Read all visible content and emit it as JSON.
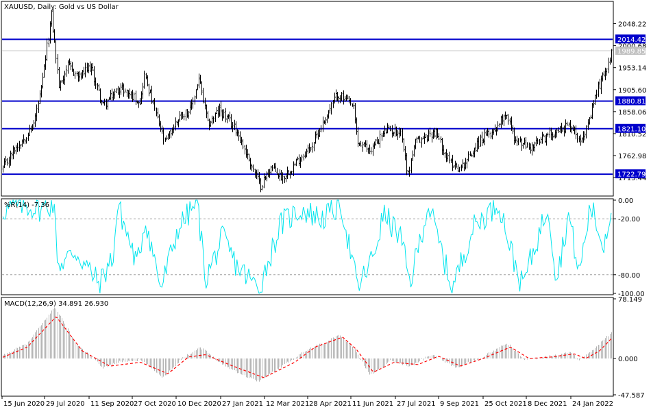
{
  "title": "XAUUSD, Daily:  Gold vs US Dollar",
  "colors": {
    "background": "#ffffff",
    "foreground": "#000000",
    "candle": "#000000",
    "level_line": "#0000cc",
    "level_tag_bg": "#0000cc",
    "level_tag_text": "#ffffff",
    "price_tag_bg": "#c0c0c0",
    "williams_line": "#00e5ee",
    "macd_hist": "#b4b4b4",
    "macd_signal": "#ff0000",
    "dotted_level": "#a0a0a0"
  },
  "x_axis_dates": [
    "15 Jun 2020",
    "29 Jul 2020",
    "11 Sep 2020",
    "27 Oct 2020",
    "10 Dec 2020",
    "27 Jan 2021",
    "12 Mar 2021",
    "28 Apr 2021",
    "11 Jun 2021",
    "27 Jul 2021",
    "9 Sep 2021",
    "25 Oct 2021",
    "8 Dec 2021",
    "24 Jan 2022"
  ],
  "chart_data": [
    {
      "type": "candlestick",
      "title": "XAUUSD, Daily:  Gold vs US Dollar",
      "ylim": [
        1677,
        2095
      ],
      "y_ticks": [
        "2048.22",
        "2000.68",
        "1953.14",
        "1905.60",
        "1858.06",
        "1810.52",
        "1762.98",
        "1715.44"
      ],
      "levels": [
        {
          "value": 2014.42,
          "label": "2014.42"
        },
        {
          "value": 1880.81,
          "label": "1880.81"
        },
        {
          "value": 1821.1,
          "label": "1821.10"
        },
        {
          "value": 1722.79,
          "label": "1722.79"
        }
      ],
      "current_price": {
        "value": 1989.85,
        "label": "1989.85"
      },
      "path": [
        {
          "x": 0,
          "y": 1725
        },
        {
          "x": 20,
          "y": 1775
        },
        {
          "x": 48,
          "y": 1825
        },
        {
          "x": 60,
          "y": 1905
        },
        {
          "x": 75,
          "y": 2068
        },
        {
          "x": 86,
          "y": 1910
        },
        {
          "x": 98,
          "y": 1958
        },
        {
          "x": 115,
          "y": 1932
        },
        {
          "x": 132,
          "y": 1955
        },
        {
          "x": 150,
          "y": 1870
        },
        {
          "x": 175,
          "y": 1910
        },
        {
          "x": 205,
          "y": 1880
        },
        {
          "x": 210,
          "y": 1940
        },
        {
          "x": 240,
          "y": 1790
        },
        {
          "x": 262,
          "y": 1850
        },
        {
          "x": 278,
          "y": 1862
        },
        {
          "x": 290,
          "y": 1930
        },
        {
          "x": 303,
          "y": 1830
        },
        {
          "x": 320,
          "y": 1862
        },
        {
          "x": 345,
          "y": 1818
        },
        {
          "x": 362,
          "y": 1758
        },
        {
          "x": 380,
          "y": 1698
        },
        {
          "x": 395,
          "y": 1738
        },
        {
          "x": 412,
          "y": 1715
        },
        {
          "x": 430,
          "y": 1745
        },
        {
          "x": 455,
          "y": 1785
        },
        {
          "x": 468,
          "y": 1825
        },
        {
          "x": 492,
          "y": 1896
        },
        {
          "x": 515,
          "y": 1870
        },
        {
          "x": 522,
          "y": 1790
        },
        {
          "x": 540,
          "y": 1775
        },
        {
          "x": 563,
          "y": 1818
        },
        {
          "x": 585,
          "y": 1815
        },
        {
          "x": 595,
          "y": 1720
        },
        {
          "x": 605,
          "y": 1790
        },
        {
          "x": 635,
          "y": 1815
        },
        {
          "x": 655,
          "y": 1750
        },
        {
          "x": 672,
          "y": 1735
        },
        {
          "x": 700,
          "y": 1795
        },
        {
          "x": 722,
          "y": 1820
        },
        {
          "x": 738,
          "y": 1858
        },
        {
          "x": 752,
          "y": 1795
        },
        {
          "x": 775,
          "y": 1780
        },
        {
          "x": 800,
          "y": 1808
        },
        {
          "x": 832,
          "y": 1830
        },
        {
          "x": 845,
          "y": 1800
        },
        {
          "x": 858,
          "y": 1825
        },
        {
          "x": 870,
          "y": 1900
        },
        {
          "x": 885,
          "y": 1955
        },
        {
          "x": 893,
          "y": 1990
        }
      ]
    },
    {
      "type": "line",
      "title": "%R(14) -7.36",
      "ylim": [
        -100,
        0
      ],
      "y_ticks": [
        "0.00",
        "-20.00",
        "-80.00",
        "-100.00"
      ],
      "levels": [
        -20,
        -80
      ],
      "path": [
        {
          "x": 0,
          "y": -12
        },
        {
          "x": 30,
          "y": -5
        },
        {
          "x": 60,
          "y": -10
        },
        {
          "x": 78,
          "y": -3
        },
        {
          "x": 85,
          "y": -70
        },
        {
          "x": 110,
          "y": -55
        },
        {
          "x": 145,
          "y": -90
        },
        {
          "x": 165,
          "y": -60
        },
        {
          "x": 172,
          "y": -5
        },
        {
          "x": 200,
          "y": -70
        },
        {
          "x": 212,
          "y": -20
        },
        {
          "x": 235,
          "y": -95
        },
        {
          "x": 260,
          "y": -30
        },
        {
          "x": 288,
          "y": -2
        },
        {
          "x": 300,
          "y": -85
        },
        {
          "x": 325,
          "y": -40
        },
        {
          "x": 345,
          "y": -70
        },
        {
          "x": 378,
          "y": -95
        },
        {
          "x": 410,
          "y": -25
        },
        {
          "x": 440,
          "y": -10
        },
        {
          "x": 470,
          "y": -20
        },
        {
          "x": 498,
          "y": -5
        },
        {
          "x": 522,
          "y": -95
        },
        {
          "x": 545,
          "y": -60
        },
        {
          "x": 560,
          "y": -15
        },
        {
          "x": 585,
          "y": -40
        },
        {
          "x": 598,
          "y": -90
        },
        {
          "x": 625,
          "y": -5
        },
        {
          "x": 660,
          "y": -95
        },
        {
          "x": 690,
          "y": -30
        },
        {
          "x": 728,
          "y": -2
        },
        {
          "x": 748,
          "y": -60
        },
        {
          "x": 762,
          "y": -92
        },
        {
          "x": 785,
          "y": -40
        },
        {
          "x": 800,
          "y": -5
        },
        {
          "x": 812,
          "y": -85
        },
        {
          "x": 830,
          "y": -15
        },
        {
          "x": 845,
          "y": -80
        },
        {
          "x": 862,
          "y": -5
        },
        {
          "x": 880,
          "y": -50
        },
        {
          "x": 893,
          "y": -7
        }
      ]
    },
    {
      "type": "bar+line",
      "title": "MACD(12,26,9) 34.891 26.930",
      "ylim": [
        -47.587,
        78.149
      ],
      "y_ticks": [
        "78.149",
        "0.000",
        "-47.587"
      ],
      "histogram_path": [
        {
          "x": 0,
          "y": 2
        },
        {
          "x": 40,
          "y": 20
        },
        {
          "x": 80,
          "y": 68
        },
        {
          "x": 110,
          "y": 20
        },
        {
          "x": 150,
          "y": -12
        },
        {
          "x": 175,
          "y": -4
        },
        {
          "x": 205,
          "y": -2
        },
        {
          "x": 238,
          "y": -25
        },
        {
          "x": 265,
          "y": 0
        },
        {
          "x": 292,
          "y": 15
        },
        {
          "x": 325,
          "y": -8
        },
        {
          "x": 355,
          "y": -22
        },
        {
          "x": 378,
          "y": -30
        },
        {
          "x": 420,
          "y": -5
        },
        {
          "x": 445,
          "y": 10
        },
        {
          "x": 495,
          "y": 30
        },
        {
          "x": 515,
          "y": 15
        },
        {
          "x": 540,
          "y": -22
        },
        {
          "x": 570,
          "y": -3
        },
        {
          "x": 598,
          "y": -10
        },
        {
          "x": 630,
          "y": 5
        },
        {
          "x": 665,
          "y": -12
        },
        {
          "x": 700,
          "y": 0
        },
        {
          "x": 740,
          "y": 20
        },
        {
          "x": 765,
          "y": -2
        },
        {
          "x": 800,
          "y": 3
        },
        {
          "x": 832,
          "y": 8
        },
        {
          "x": 845,
          "y": -2
        },
        {
          "x": 870,
          "y": 15
        },
        {
          "x": 893,
          "y": 34.9
        }
      ],
      "signal_path": [
        {
          "x": 0,
          "y": 0
        },
        {
          "x": 40,
          "y": 15
        },
        {
          "x": 82,
          "y": 55
        },
        {
          "x": 120,
          "y": 10
        },
        {
          "x": 160,
          "y": -10
        },
        {
          "x": 205,
          "y": -5
        },
        {
          "x": 245,
          "y": -20
        },
        {
          "x": 275,
          "y": 2
        },
        {
          "x": 300,
          "y": 5
        },
        {
          "x": 340,
          "y": -10
        },
        {
          "x": 385,
          "y": -25
        },
        {
          "x": 430,
          "y": -5
        },
        {
          "x": 460,
          "y": 15
        },
        {
          "x": 500,
          "y": 28
        },
        {
          "x": 520,
          "y": 12
        },
        {
          "x": 545,
          "y": -18
        },
        {
          "x": 575,
          "y": -5
        },
        {
          "x": 610,
          "y": -8
        },
        {
          "x": 640,
          "y": 3
        },
        {
          "x": 672,
          "y": -10
        },
        {
          "x": 705,
          "y": 0
        },
        {
          "x": 745,
          "y": 15
        },
        {
          "x": 772,
          "y": 0
        },
        {
          "x": 805,
          "y": 2
        },
        {
          "x": 838,
          "y": 6
        },
        {
          "x": 855,
          "y": 0
        },
        {
          "x": 875,
          "y": 10
        },
        {
          "x": 893,
          "y": 26.9
        }
      ]
    }
  ]
}
